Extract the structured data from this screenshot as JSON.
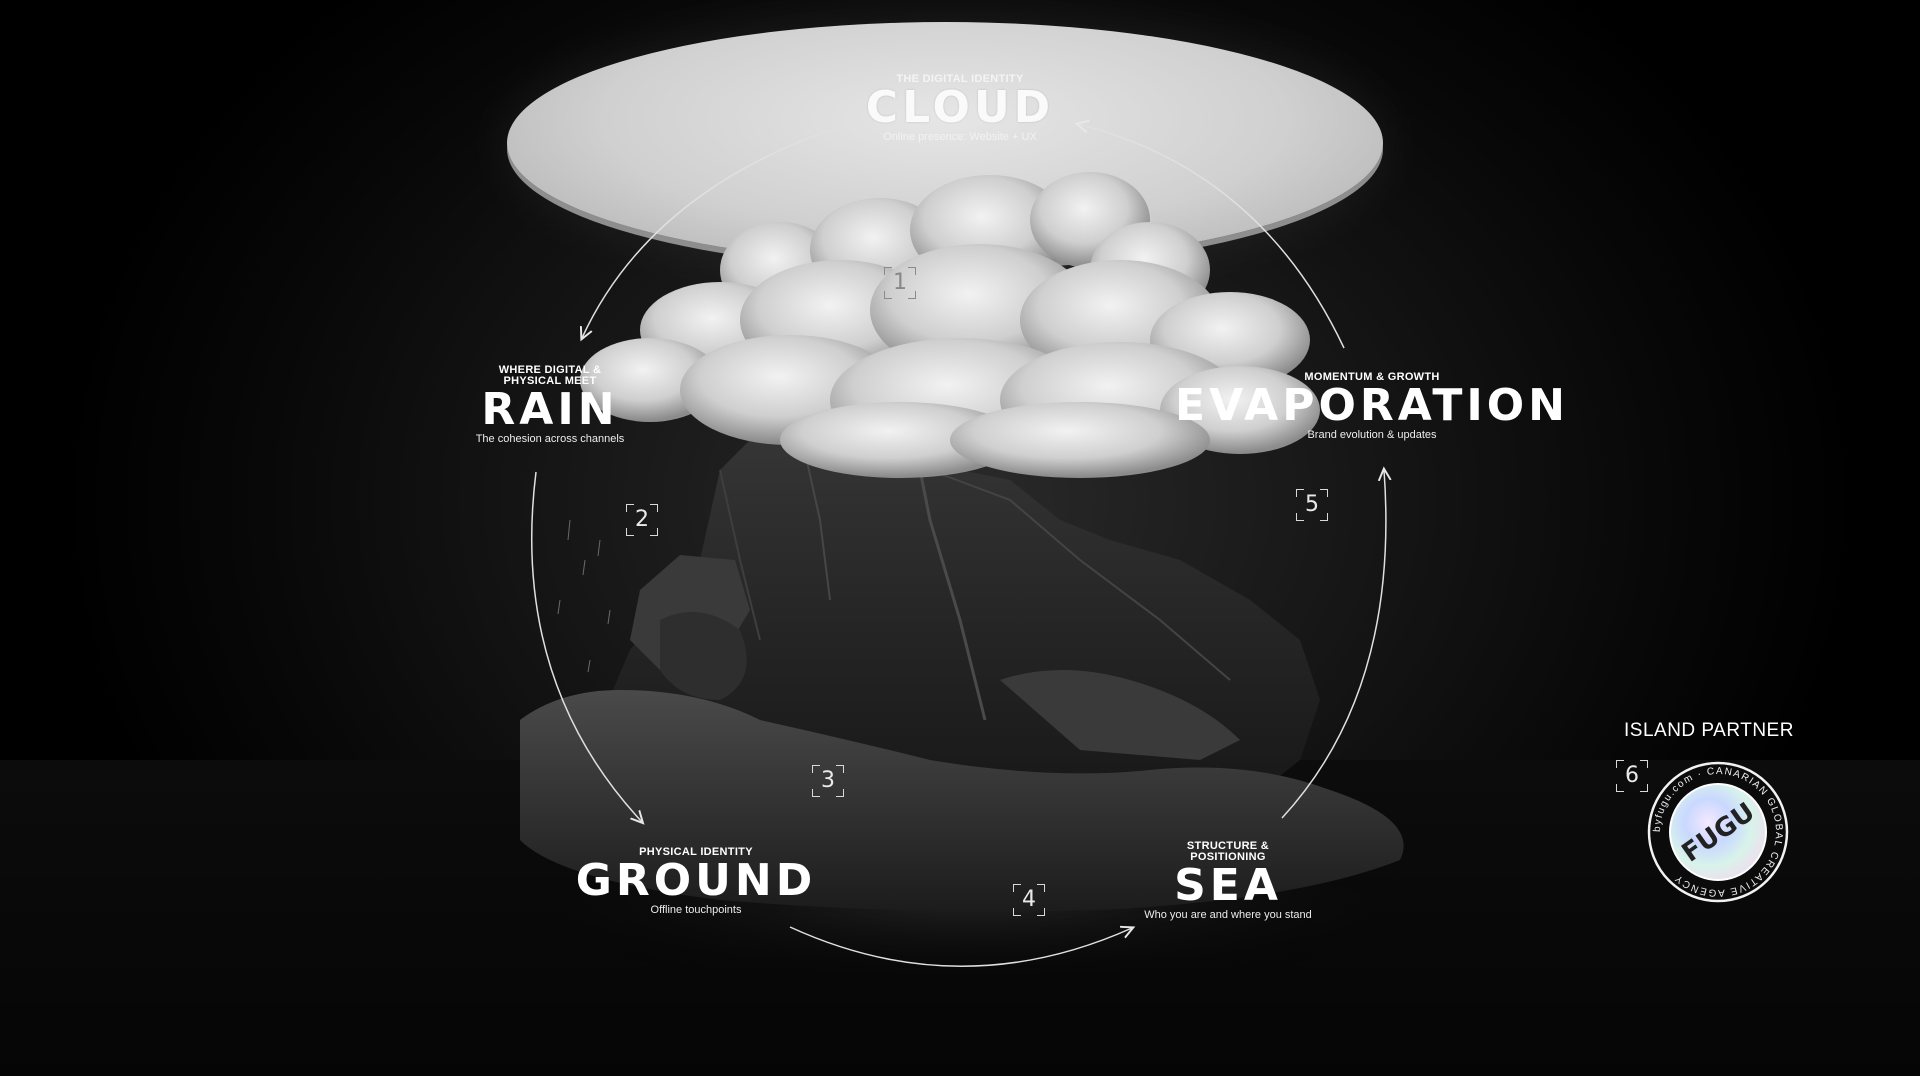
{
  "stages": [
    {
      "number": "1",
      "kicker": "THE DIGITAL IDENTITY",
      "title": "CLOUD",
      "subtitle": "Online presence: Website + UX"
    },
    {
      "number": "2",
      "kicker": "WHERE DIGITAL & PHYSICAL MEET",
      "title": "RAIN",
      "subtitle": "The cohesion across channels"
    },
    {
      "number": "3",
      "kicker": "PHYSICAL IDENTITY",
      "title": "GROUND",
      "subtitle": "Offline touchpoints"
    },
    {
      "number": "4",
      "kicker": "STRUCTURE & POSITIONING",
      "title": "SEA",
      "subtitle": "Who you are and where you stand"
    },
    {
      "number": "5",
      "kicker": "MOMENTUM & GROWTH",
      "title": "EVAPORATION",
      "subtitle": "Brand evolution & updates"
    }
  ],
  "partner": {
    "number": "6",
    "title": "ISLAND PARTNER",
    "badge_text": "FUGU",
    "ring_text": "byfugu.com · CANARIAN GLOBAL CREATIVE AGENCY"
  },
  "colors": {
    "background": "#000000",
    "disc": "#d6d6d6",
    "text": "#ffffff",
    "arrow": "#e8e8e8"
  },
  "icons": [
    "cycle-arrow",
    "bracket-number-marker",
    "cloud-illustration",
    "island-illustration",
    "fugu-badge"
  ]
}
